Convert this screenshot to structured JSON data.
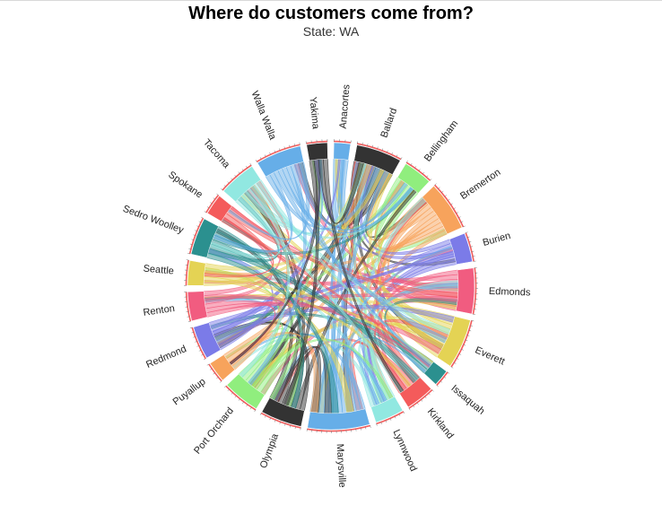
{
  "chart_data": {
    "type": "chord",
    "title": "Where do customers come from?",
    "subtitle": "State: WA",
    "groups": [
      {
        "name": "Anacortes",
        "value": 2.0,
        "color": "#66aee8"
      },
      {
        "name": "Ballard",
        "value": 5.5,
        "color": "#333333"
      },
      {
        "name": "Bellingham",
        "value": 3.5,
        "color": "#90ee7e"
      },
      {
        "name": "Bremerton",
        "value": 6.0,
        "color": "#f7a35c"
      },
      {
        "name": "Burien",
        "value": 3.5,
        "color": "#7b7be8"
      },
      {
        "name": "Edmonds",
        "value": 5.5,
        "color": "#f15c80"
      },
      {
        "name": "Everett",
        "value": 6.0,
        "color": "#e4d354"
      },
      {
        "name": "Issaquah",
        "value": 2.0,
        "color": "#2b908f"
      },
      {
        "name": "Kirkland",
        "value": 3.5,
        "color": "#f45b5b"
      },
      {
        "name": "Lynnwood",
        "value": 3.5,
        "color": "#91e8e1"
      },
      {
        "name": "Marysville",
        "value": 7.5,
        "color": "#66aee8"
      },
      {
        "name": "Olympia",
        "value": 5.0,
        "color": "#333333"
      },
      {
        "name": "Port Orchard",
        "value": 4.5,
        "color": "#90ee7e"
      },
      {
        "name": "Puyallup",
        "value": 2.5,
        "color": "#f7a35c"
      },
      {
        "name": "Redmond",
        "value": 4.0,
        "color": "#7b7be8"
      },
      {
        "name": "Renton",
        "value": 3.5,
        "color": "#f15c80"
      },
      {
        "name": "Seattle",
        "value": 3.0,
        "color": "#e4d354"
      },
      {
        "name": "Sedro Woolley",
        "value": 4.5,
        "color": "#2b908f"
      },
      {
        "name": "Spokane",
        "value": 2.5,
        "color": "#f45b5b"
      },
      {
        "name": "Tacoma",
        "value": 4.5,
        "color": "#91e8e1"
      },
      {
        "name": "Walla Walla",
        "value": 5.5,
        "color": "#66aee8"
      },
      {
        "name": "Yakima",
        "value": 2.5,
        "color": "#333333"
      }
    ],
    "legend": "none"
  }
}
